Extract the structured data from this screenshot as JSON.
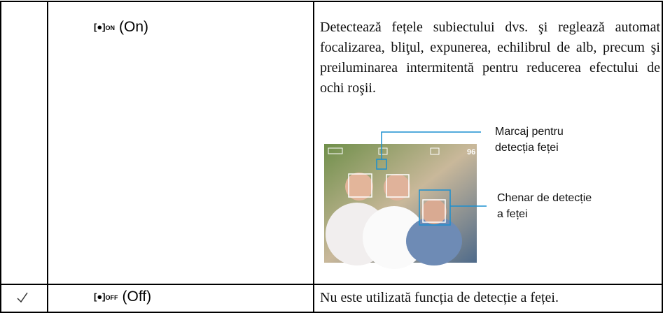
{
  "table": {
    "rows": [
      {
        "mode_icon_sub": "ON",
        "mode": "(On)",
        "description": "Detectează fețele subiectului dvs. şi reglează automat focalizarea, bliţul, expunerea, echilibrul de alb, precum şi preiluminarea intermitentă pentru reducerea efectului de ochi roşii.",
        "figure": {
          "screen_count": "96",
          "callouts": [
            [
              "Marcaj pentru",
              "detecția feței"
            ],
            [
              "Chenar de detecție",
              "a feței"
            ]
          ]
        }
      },
      {
        "mode_icon_sub": "OFF",
        "mode": "(Off)",
        "description": "Nu este utilizată funcția de detecție a feței."
      }
    ]
  }
}
